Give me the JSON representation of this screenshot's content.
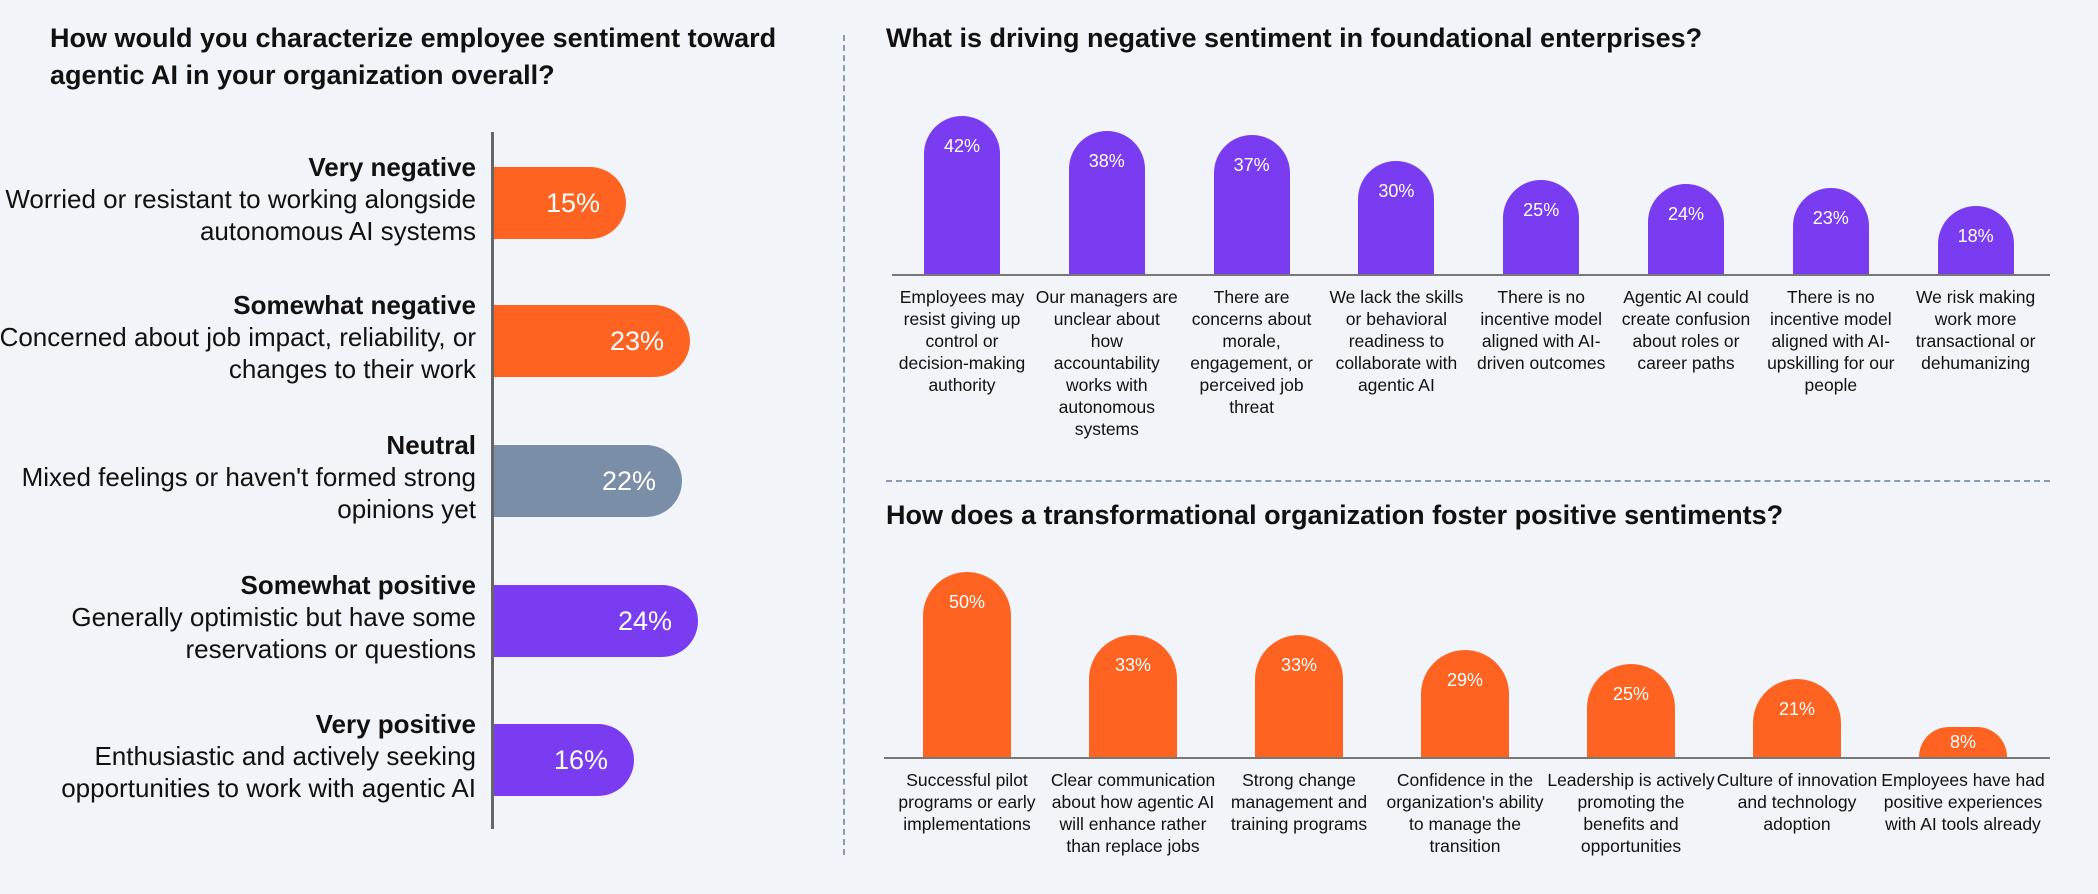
{
  "left_chart": {
    "title": "How would you characterize employee sentiment toward agentic AI in your organization overall?",
    "items": [
      {
        "label": "Very negative",
        "description": "Worried or resistant to working alongside autonomous AI systems",
        "value": 15,
        "value_label": "15%",
        "color": "#ff6321"
      },
      {
        "label": "Somewhat negative",
        "description": "Concerned about job impact, reliability, or changes to their work",
        "value": 23,
        "value_label": "23%",
        "color": "#ff6321"
      },
      {
        "label": "Neutral",
        "description": "Mixed feelings or haven't formed strong opinions yet",
        "value": 22,
        "value_label": "22%",
        "color": "#7a8ea8"
      },
      {
        "label": "Somewhat positive",
        "description": "Generally optimistic but have some reservations or questions",
        "value": 24,
        "value_label": "24%",
        "color": "#7a3cf0"
      },
      {
        "label": "Very positive",
        "description": "Enthusiastic and actively seeking opportunities to work with agentic AI",
        "value": 16,
        "value_label": "16%",
        "color": "#7a3cf0"
      }
    ]
  },
  "top_chart": {
    "title": "What is driving negative sentiment in foundational enterprises?",
    "color": "#7a3cf0",
    "categories": [
      "Employees may resist giving up control or decision-making authority",
      "Our managers are unclear about how accountability works with autonomous systems",
      "There are concerns about morale, engagement, or perceived job threat",
      "We lack the skills or behavioral readiness to collaborate with agentic AI",
      "There is no incentive model aligned with AI-driven outcomes",
      "Agentic AI could create confusion about roles or career paths",
      "There is no incentive model aligned with AI-upskilling for our people",
      "We risk making work more transactional or dehumanizing"
    ],
    "label_lines": [
      "Employees may\nresist giving up\ncontrol or\ndecision-making\nauthority",
      "Our managers are\nunclear about\nhow\naccountability\nworks with\nautonomous\nsystems",
      "There are\nconcerns about\nmorale,\nengagement, or\nperceived job\nthreat",
      "We lack the skills\nor behavioral\nreadiness to\ncollaborate with\nagentic AI",
      "There is no\nincentive model\naligned with AI-\ndriven outcomes",
      "Agentic AI could\ncreate confusion\nabout roles or\ncareer paths",
      "There is no\nincentive model\naligned with AI-\nupskilling for our\npeople",
      "We risk making\nwork more\ntransactional or\ndehumanizing"
    ],
    "values": [
      42,
      38,
      37,
      30,
      25,
      24,
      23,
      18
    ],
    "value_labels": [
      "42%",
      "38%",
      "37%",
      "30%",
      "25%",
      "24%",
      "23%",
      "18%"
    ]
  },
  "bottom_chart": {
    "title": "How does a transformational organization foster positive sentiments?",
    "color": "#ff6321",
    "categories": [
      "Successful pilot programs or early implementations",
      "Clear communication about how agentic AI will enhance rather than replace jobs",
      "Strong change management and training programs",
      "Confidence in the organization's ability to manage the transition",
      "Leadership is actively promoting the benefits and opportunities",
      "Culture of innovation and technology adoption",
      "Employees have had positive experiences with AI tools already"
    ],
    "label_lines": [
      "Successful pilot\nprograms or early\nimplementations",
      "Clear communication\nabout how agentic AI\nwill enhance rather\nthan replace jobs",
      "Strong change\nmanagement and\ntraining programs",
      "Confidence in the\norganization's ability\nto manage the\ntransition",
      "Leadership is actively\npromoting the\nbenefits and\nopportunities",
      "Culture of innovation\nand technology\nadoption",
      "Employees have had\npositive experiences\nwith AI tools already"
    ],
    "values": [
      50,
      33,
      33,
      29,
      25,
      21,
      8
    ],
    "value_labels": [
      "50%",
      "33%",
      "33%",
      "29%",
      "25%",
      "21%",
      "8%"
    ]
  },
  "chart_data": [
    {
      "type": "bar",
      "orientation": "horizontal",
      "title": "How would you characterize employee sentiment toward agentic AI in your organization overall?",
      "categories": [
        "Very negative",
        "Somewhat negative",
        "Neutral",
        "Somewhat positive",
        "Very positive"
      ],
      "values": [
        15,
        23,
        22,
        24,
        16
      ]
    },
    {
      "type": "bar",
      "title": "What is driving negative sentiment in foundational enterprises?",
      "categories": [
        "Employees may resist giving up control or decision-making authority",
        "Our managers are unclear about how accountability works with autonomous systems",
        "There are concerns about morale, engagement, or perceived job threat",
        "We lack the skills or behavioral readiness to collaborate with agentic AI",
        "There is no incentive model aligned with AI-driven outcomes",
        "Agentic AI could create confusion about roles or career paths",
        "There is no incentive model aligned with AI-upskilling for our people",
        "We risk making work more transactional or dehumanizing"
      ],
      "values": [
        42,
        38,
        37,
        30,
        25,
        24,
        23,
        18
      ]
    },
    {
      "type": "bar",
      "title": "How does a transformational organization foster positive sentiments?",
      "categories": [
        "Successful pilot programs or early implementations",
        "Clear communication about how agentic AI will enhance rather than replace jobs",
        "Strong change management and training programs",
        "Confidence in the organization's ability to manage the transition",
        "Leadership is actively promoting the benefits and opportunities",
        "Culture of innovation and technology adoption",
        "Employees have had positive experiences with AI tools already"
      ],
      "values": [
        50,
        33,
        33,
        29,
        25,
        21,
        8
      ]
    }
  ]
}
